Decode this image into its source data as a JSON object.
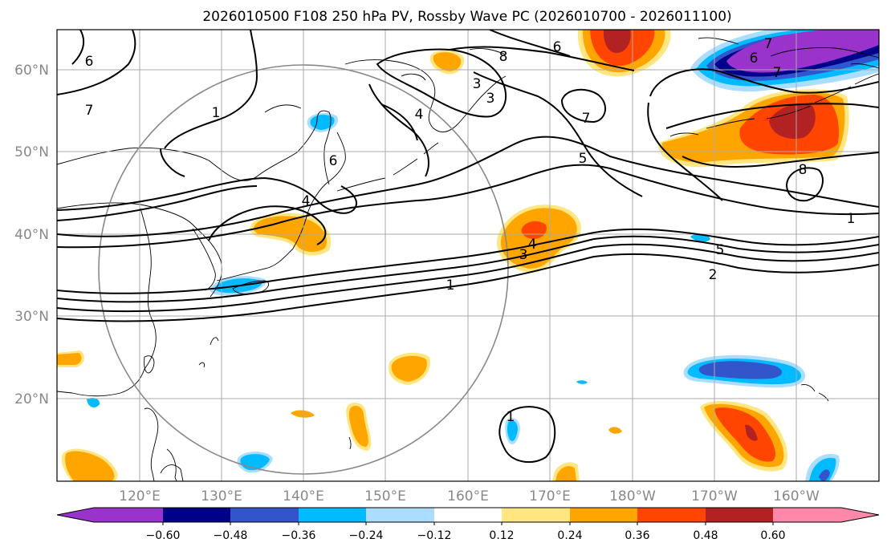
{
  "title": "2026010500 F108 250 hPa PV, Rossby Wave PC (2026010700 - 2026011100)",
  "lat_labels": [
    "60°N",
    "50°N",
    "40°N",
    "30°N",
    "20°N"
  ],
  "lon_labels": [
    "120°E",
    "130°E",
    "140°E",
    "150°E",
    "160°E",
    "170°E",
    "180°W",
    "170°W",
    "160°W"
  ],
  "colorbar": {
    "colors": [
      "#9933cc",
      "#000088",
      "#3355cc",
      "#00bbff",
      "#aaddff",
      "#ffffff",
      "#ffe680",
      "#ffa500",
      "#ff4500",
      "#b22222",
      "#ff88aa"
    ],
    "ticks": [
      "−0.60",
      "−0.48",
      "−0.36",
      "−0.24",
      "−0.12",
      "0.12",
      "0.24",
      "0.36",
      "0.48",
      "0.60"
    ]
  },
  "contour_labels": [
    "6",
    "7",
    "1",
    "4",
    "6",
    "4",
    "3",
    "6",
    "3",
    "8",
    "6",
    "7",
    "7",
    "5",
    "8",
    "1",
    "7",
    "5",
    "2",
    "1",
    "3",
    "4",
    "1"
  ],
  "shading": {
    "pos_mid": "#ffa500",
    "pos_light": "#ffe680",
    "pos_strong": "#ff4500",
    "pos_max": "#b22222",
    "neg_light": "#aaddff",
    "neg_mid": "#00bbff",
    "neg_strong": "#3355cc",
    "neg_deep": "#000088",
    "neg_max": "#9933cc"
  }
}
